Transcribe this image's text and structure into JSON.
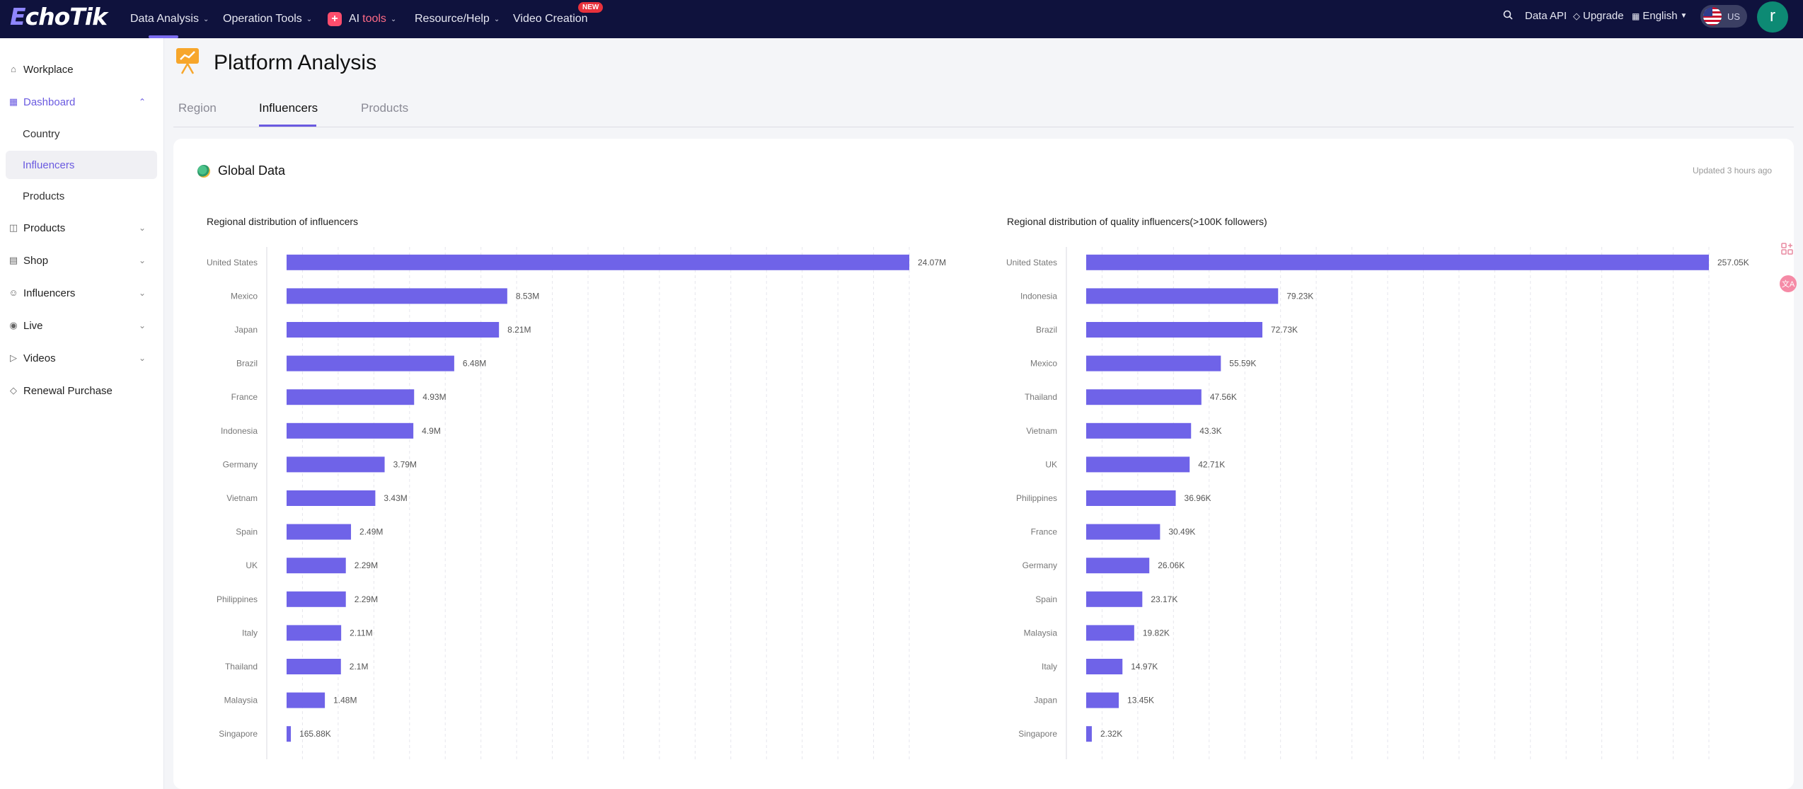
{
  "topnav": {
    "logo": "EchoTik",
    "items": [
      {
        "label": "Data Analysis"
      },
      {
        "label": "Operation Tools"
      },
      {
        "label_prefix": "AI ",
        "label_suffix": "tools"
      },
      {
        "label": "Resource/Help"
      },
      {
        "label": "Video Creation",
        "badge": "NEW"
      }
    ],
    "data_api": "Data API",
    "upgrade": "Upgrade",
    "language": "English",
    "region": "US",
    "avatar_letter": "r"
  },
  "sidebar": {
    "workplace": "Workplace",
    "dashboard": "Dashboard",
    "dashboard_children": [
      "Country",
      "Influencers",
      "Products"
    ],
    "products": "Products",
    "shop": "Shop",
    "influencers": "Influencers",
    "live": "Live",
    "videos": "Videos",
    "renewal": "Renewal Purchase"
  },
  "page": {
    "title": "Platform Analysis",
    "tabs": [
      "Region",
      "Influencers",
      "Products"
    ],
    "active_tab": "Influencers"
  },
  "card": {
    "title": "Global Data",
    "updated": "Updated 3 hours ago"
  },
  "colors": {
    "accent": "#6a5ae0",
    "bar": "#6f63e8",
    "nav_bg": "#0f123d"
  },
  "chart_data": [
    {
      "type": "bar",
      "orientation": "horizontal",
      "title": "Regional distribution of influencers",
      "categories": [
        "United States",
        "Mexico",
        "Japan",
        "Brazil",
        "France",
        "Indonesia",
        "Germany",
        "Vietnam",
        "Spain",
        "UK",
        "Philippines",
        "Italy",
        "Thailand",
        "Malaysia",
        "Singapore"
      ],
      "values": [
        24070000,
        8530000,
        8210000,
        6480000,
        4930000,
        4900000,
        3790000,
        3430000,
        2490000,
        2290000,
        2290000,
        2110000,
        2100000,
        1480000,
        165880
      ],
      "labels": [
        "24.07M",
        "8.53M",
        "8.21M",
        "6.48M",
        "4.93M",
        "4.9M",
        "3.79M",
        "3.43M",
        "2.49M",
        "2.29M",
        "2.29M",
        "2.11M",
        "2.1M",
        "1.48M",
        "165.88K"
      ],
      "grid": true,
      "xlabel": "",
      "ylabel": ""
    },
    {
      "type": "bar",
      "orientation": "horizontal",
      "title": "Regional distribution of quality influencers(>100K followers)",
      "categories": [
        "United States",
        "Indonesia",
        "Brazil",
        "Mexico",
        "Thailand",
        "Vietnam",
        "UK",
        "Philippines",
        "France",
        "Germany",
        "Spain",
        "Malaysia",
        "Italy",
        "Japan",
        "Singapore"
      ],
      "values": [
        257050,
        79230,
        72730,
        55590,
        47560,
        43300,
        42710,
        36960,
        30490,
        26060,
        23170,
        19820,
        14970,
        13450,
        2320
      ],
      "labels": [
        "257.05K",
        "79.23K",
        "72.73K",
        "55.59K",
        "47.56K",
        "43.3K",
        "42.71K",
        "36.96K",
        "30.49K",
        "26.06K",
        "23.17K",
        "19.82K",
        "14.97K",
        "13.45K",
        "2.32K"
      ],
      "grid": true,
      "xlabel": "",
      "ylabel": ""
    }
  ]
}
